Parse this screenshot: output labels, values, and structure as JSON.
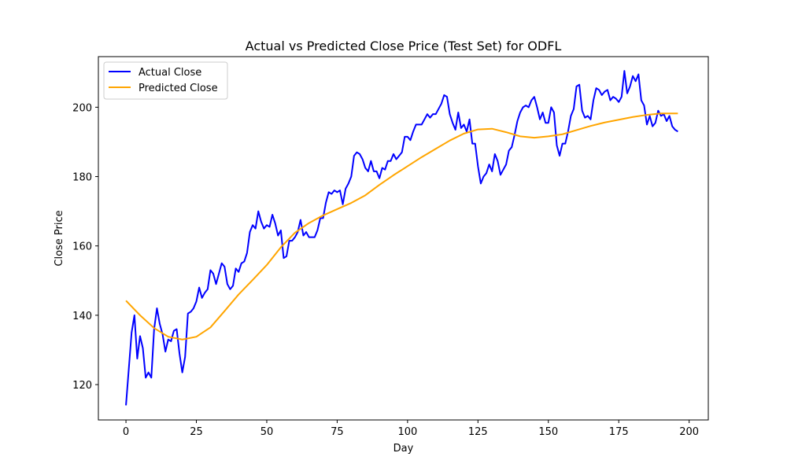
{
  "chart_data": {
    "type": "line",
    "title": "Actual vs Predicted Close Price (Test Set) for ODFL",
    "xlabel": "Day",
    "ylabel": "Close Price",
    "xlim": [
      -9.8,
      206.8
    ],
    "ylim": [
      109.8,
      214.6
    ],
    "xticks": [
      0,
      25,
      50,
      75,
      100,
      125,
      150,
      175,
      200
    ],
    "yticks": [
      120,
      140,
      160,
      180,
      200
    ],
    "grid": false,
    "legend_position": "top-left",
    "series": [
      {
        "name": "Actual Close",
        "color": "#0000ff",
        "x": [
          0,
          1,
          2,
          3,
          4,
          5,
          6,
          7,
          8,
          9,
          10,
          11,
          12,
          13,
          14,
          15,
          16,
          17,
          18,
          19,
          20,
          21,
          22,
          23,
          24,
          25,
          26,
          27,
          28,
          29,
          30,
          31,
          32,
          33,
          34,
          35,
          36,
          37,
          38,
          39,
          40,
          41,
          42,
          43,
          44,
          45,
          46,
          47,
          48,
          49,
          50,
          51,
          52,
          53,
          54,
          55,
          56,
          57,
          58,
          59,
          60,
          61,
          62,
          63,
          64,
          65,
          66,
          67,
          68,
          69,
          70,
          71,
          72,
          73,
          74,
          75,
          76,
          77,
          78,
          79,
          80,
          81,
          82,
          83,
          84,
          85,
          86,
          87,
          88,
          89,
          90,
          91,
          92,
          93,
          94,
          95,
          96,
          97,
          98,
          99,
          100,
          101,
          102,
          103,
          104,
          105,
          106,
          107,
          108,
          109,
          110,
          111,
          112,
          113,
          114,
          115,
          116,
          117,
          118,
          119,
          120,
          121,
          122,
          123,
          124,
          125,
          126,
          127,
          128,
          129,
          130,
          131,
          132,
          133,
          134,
          135,
          136,
          137,
          138,
          139,
          140,
          141,
          142,
          143,
          144,
          145,
          146,
          147,
          148,
          149,
          150,
          151,
          152,
          153,
          154,
          155,
          156,
          157,
          158,
          159,
          160,
          161,
          162,
          163,
          164,
          165,
          166,
          167,
          168,
          169,
          170,
          171,
          172,
          173,
          174,
          175,
          176,
          177,
          178,
          179,
          180,
          181,
          182,
          183,
          184,
          185,
          186,
          187,
          188,
          189,
          190,
          191,
          192,
          193,
          194,
          195,
          196
        ],
        "y": [
          114,
          124.5,
          135,
          140,
          127.5,
          134,
          130.5,
          122,
          123.5,
          122,
          136,
          142,
          137.5,
          134.5,
          129.5,
          133,
          132.5,
          135.5,
          136,
          129,
          123.5,
          128,
          140.5,
          141,
          142,
          144,
          148,
          145,
          146.5,
          147.5,
          153,
          152,
          149,
          152,
          155,
          154,
          149,
          147.5,
          148.5,
          153.5,
          152.5,
          155,
          155.5,
          158,
          164,
          166,
          165,
          170,
          167,
          165,
          166,
          165.5,
          169,
          166.5,
          163,
          164.5,
          156.5,
          157,
          161.5,
          161.5,
          162.5,
          164,
          167.5,
          163,
          164,
          162.5,
          162.5,
          162.5,
          164.5,
          168,
          168,
          172.5,
          175.5,
          175,
          176,
          175.5,
          176,
          172,
          176.5,
          178,
          180,
          186,
          187,
          186.5,
          185,
          182.5,
          181.5,
          184.5,
          181.5,
          181.5,
          179.5,
          182.5,
          182,
          184.5,
          184.5,
          186.5,
          185,
          186,
          187,
          191.5,
          191.5,
          190.5,
          193,
          195,
          195,
          195,
          196.5,
          198,
          197,
          198,
          198,
          199.5,
          201,
          203.5,
          203,
          198,
          195.5,
          193.5,
          198.5,
          194,
          195,
          193,
          196.5,
          189.5,
          189.5,
          183,
          178,
          180,
          181,
          183.5,
          181.5,
          186.5,
          184.5,
          180.5,
          182,
          183.5,
          187.5,
          188.5,
          192,
          196,
          198.5,
          200,
          200.5,
          200,
          202,
          203,
          200,
          196.5,
          198.5,
          195.5,
          195.5,
          200,
          198.5,
          189,
          186,
          189.5,
          189.5,
          193,
          197.5,
          199.5,
          206,
          206.5,
          199,
          197,
          197.5,
          196.5,
          202,
          205.5,
          205,
          203.5,
          204.5,
          205,
          202,
          203,
          202.5,
          201.5,
          203,
          210.5,
          204,
          206,
          209,
          207.5,
          209.5,
          202,
          200.5,
          195,
          197.5,
          194.5,
          195.5,
          199,
          197.5,
          198,
          196,
          197.5,
          194.5,
          193.5,
          193
        ]
      },
      {
        "name": "Predicted Close",
        "color": "#ffa500",
        "x": [
          0,
          5,
          10,
          15,
          20,
          25,
          30,
          35,
          40,
          45,
          50,
          55,
          60,
          65,
          70,
          75,
          80,
          85,
          90,
          95,
          100,
          105,
          110,
          115,
          120,
          125,
          130,
          135,
          140,
          145,
          150,
          155,
          160,
          165,
          170,
          175,
          180,
          185,
          190,
          196
        ],
        "y": [
          144.2,
          140,
          136.3,
          133.8,
          133,
          133.8,
          136.5,
          141.2,
          146,
          150.2,
          154.5,
          159.6,
          163.8,
          166.6,
          168.8,
          170.6,
          172.4,
          174.6,
          177.6,
          180.4,
          183,
          185.6,
          188,
          190.4,
          192.4,
          193.6,
          193.8,
          192.8,
          191.6,
          191.2,
          191.6,
          192.2,
          193.4,
          194.6,
          195.6,
          196.4,
          197.2,
          197.8,
          198.2,
          198.2
        ]
      }
    ]
  }
}
